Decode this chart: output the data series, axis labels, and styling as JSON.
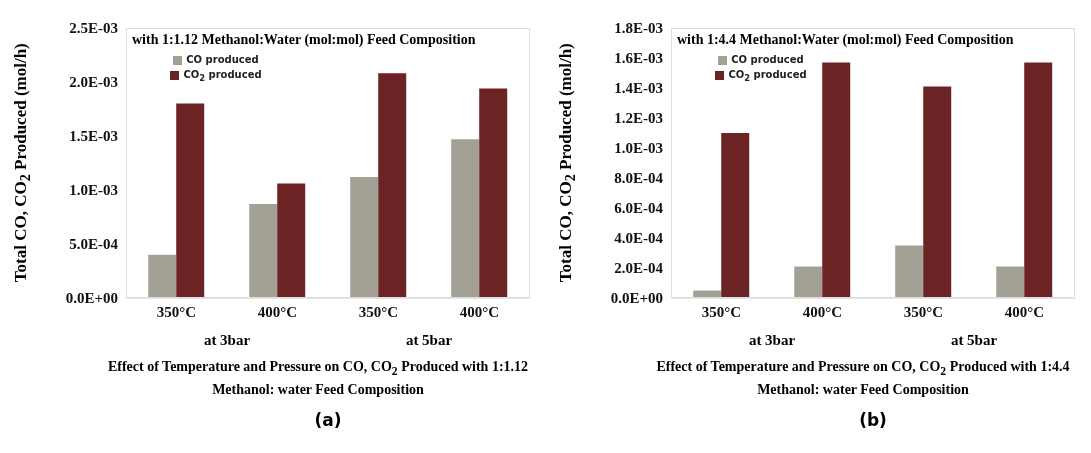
{
  "chart_data": [
    {
      "type": "bar",
      "title": "with 1:1.12 Methanol:Water (mol:mol) Feed Composition",
      "ylabel": "Total CO, CO$_{2}$ Produced (mol/h)",
      "xlabel": "Effect of Temperature and Pressure on CO, CO$_{2}$ Produced with 1:1.12 Methanol: water Feed Composition",
      "categories": [
        "350°C",
        "400°C",
        "350°C",
        "400°C"
      ],
      "series": [
        {
          "name": "CO produced",
          "color": "#a3a196",
          "values": [
            0.0004,
            0.00087,
            0.00112,
            0.00147
          ]
        },
        {
          "name": "CO$_{2}$ produced",
          "color": "#6b2324",
          "values": [
            0.0018,
            0.00106,
            0.00208,
            0.00194
          ]
        }
      ],
      "ylim": [
        0,
        0.0025
      ],
      "yticks": [
        {
          "value": 0,
          "label": "0.0E+00"
        },
        {
          "value": 0.0005,
          "label": "5.0E-04"
        },
        {
          "value": 0.001,
          "label": "1.0E-03"
        },
        {
          "value": 0.0015,
          "label": "1.5E-03"
        },
        {
          "value": 0.002,
          "label": "2.0E-03"
        },
        {
          "value": 0.0025,
          "label": "2.5E-03"
        }
      ],
      "legend": "top left",
      "grid": false,
      "annotations": [
        "at 3bar",
        "at 5bar",
        "(a)"
      ]
    },
    {
      "type": "bar",
      "title": "with 1:4.4 Methanol:Water (mol:mol) Feed Composition",
      "ylabel": "Total CO, CO$_{2}$ Produced (mol/h)",
      "xlabel": "Effect of Temperature and Pressure on CO, CO$_{2}$ Produced with 1:4.4 Methanol: water Feed Composition",
      "categories": [
        "350°C",
        "400°C",
        "350°C",
        "400°C"
      ],
      "series": [
        {
          "name": "CO produced",
          "color": "#a3a196",
          "values": [
            5e-05,
            0.00021,
            0.00035,
            0.00021
          ]
        },
        {
          "name": "CO$_{2}$ produced",
          "color": "#6b2324",
          "values": [
            0.0011,
            0.00157,
            0.00141,
            0.00157
          ]
        }
      ],
      "ylim": [
        0,
        0.0018
      ],
      "yticks": [
        {
          "value": 0,
          "label": "0.0E+00"
        },
        {
          "value": 0.0002,
          "label": "2.0E-04"
        },
        {
          "value": 0.0004,
          "label": "4.0E-04"
        },
        {
          "value": 0.0006,
          "label": "6.0E-04"
        },
        {
          "value": 0.0008,
          "label": "8.0E-04"
        },
        {
          "value": 0.001,
          "label": "1.0E-03"
        },
        {
          "value": 0.0012,
          "label": "1.2E-03"
        },
        {
          "value": 0.0014,
          "label": "1.4E-03"
        },
        {
          "value": 0.0016,
          "label": "1.6E-03"
        },
        {
          "value": 0.0018,
          "label": "1.8E-03"
        }
      ],
      "legend": "top left",
      "grid": false,
      "annotations": [
        "at 3bar",
        "at 5bar",
        "(b)"
      ]
    }
  ]
}
